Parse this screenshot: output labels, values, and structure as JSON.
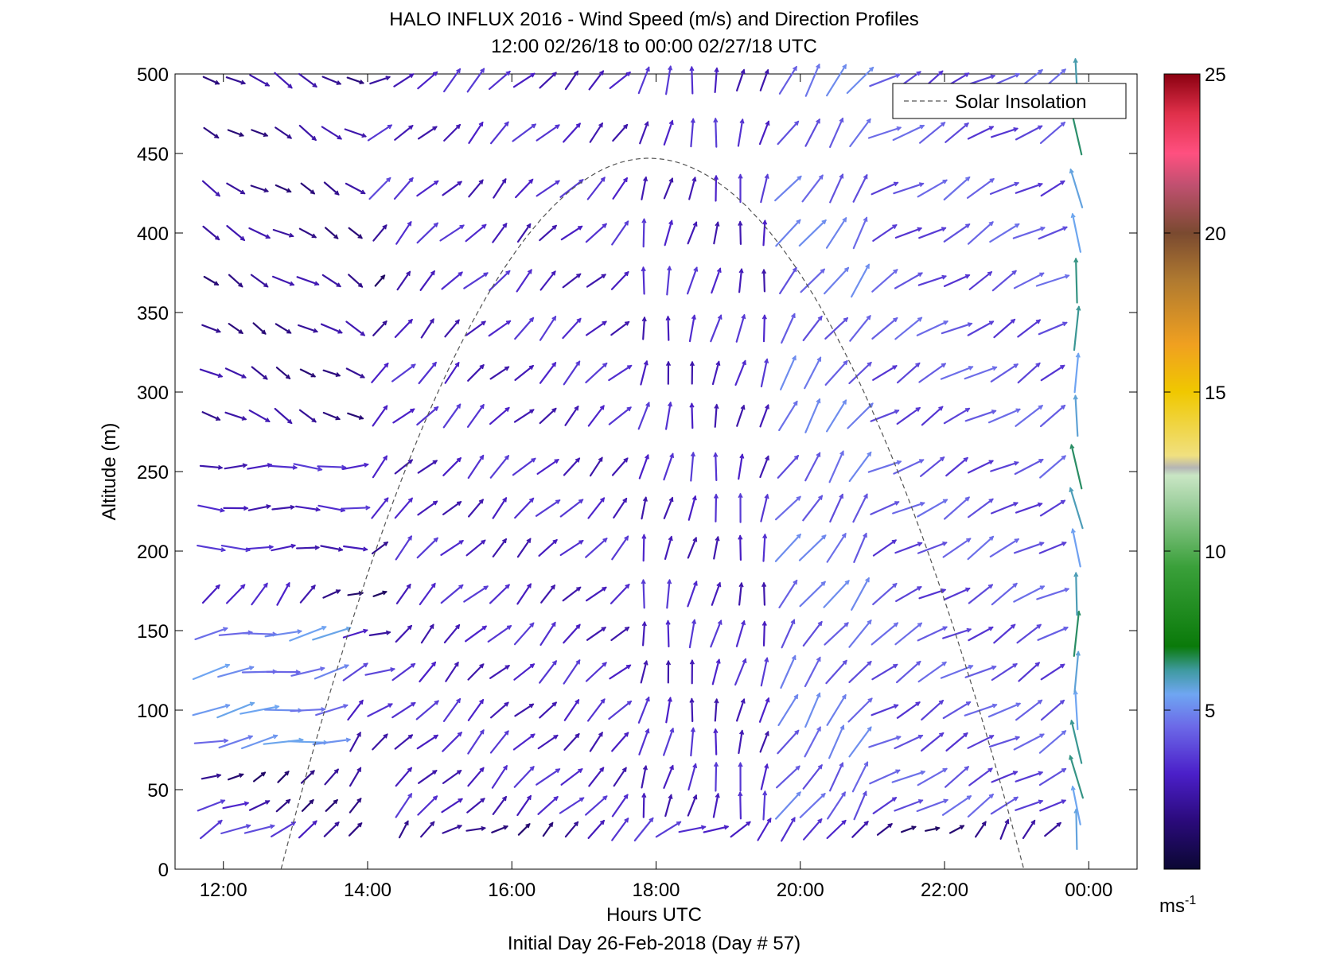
{
  "chart_data": {
    "type": "quiver",
    "title": "HALO INFLUX 2016 - Wind Speed (m/s) and Direction Profiles",
    "subtitle": "12:00 02/26/18 to 00:00 02/27/18  UTC",
    "xlabel": "Hours UTC",
    "ylabel": "Altitude (m)",
    "footer": "Initial Day 26-Feb-2018 (Day # 57)",
    "xlim": [
      11.33,
      24.67
    ],
    "ylim": [
      0,
      500
    ],
    "xticks": [
      12,
      14,
      16,
      18,
      20,
      22,
      24
    ],
    "xtick_labels": [
      "12:00",
      "14:00",
      "16:00",
      "18:00",
      "20:00",
      "22:00",
      "00:00"
    ],
    "yticks": [
      0,
      50,
      100,
      150,
      200,
      250,
      300,
      350,
      400,
      450,
      500
    ],
    "ytick_labels": [
      "0",
      "50",
      "100",
      "150",
      "200",
      "250",
      "300",
      "350",
      "400",
      "450",
      "500"
    ],
    "legend": {
      "label": "Solar Insolation",
      "position": "top-right",
      "style": "dashed"
    },
    "solar_curve": {
      "start_hour": 12.8,
      "peak_hour": 17.9,
      "end_hour": 23.1,
      "peak_altitude": 447
    },
    "colorbar": {
      "min": 0,
      "max": 25,
      "ticks": [
        5,
        10,
        15,
        20,
        25
      ],
      "tick_labels": [
        "5",
        "10",
        "15",
        "20",
        "25"
      ],
      "unit_label": "ms",
      "unit_exponent": "-1",
      "colormap": "dark-navy-purple-blue-teal-green-lightgreen-gray-yellow-orange-brown-pink-red"
    },
    "grid": false,
    "altitudes": [
      25,
      40,
      58,
      80,
      100,
      124,
      148,
      173,
      202,
      227,
      253,
      285,
      312,
      340,
      370,
      400,
      428,
      463,
      496
    ],
    "time_columns": [
      11.83,
      12.17,
      12.5,
      12.83,
      13.17,
      13.5,
      13.83,
      14.17,
      14.5,
      14.83,
      15.17,
      15.5,
      15.83,
      16.17,
      16.5,
      16.83,
      17.17,
      17.5,
      17.83,
      18.17,
      18.5,
      18.83,
      19.17,
      19.5,
      19.83,
      20.17,
      20.5,
      20.83,
      21.17,
      21.5,
      21.83,
      22.17,
      22.5,
      22.83,
      23.17,
      23.5,
      23.83
    ],
    "wind_vectors_note": "per-arrow values below",
    "wind_regimes": [
      {
        "hours": [
          11.8,
          14.1
        ],
        "altitudes": [
          200,
          260
        ],
        "direction_deg": 270,
        "speed": 3
      },
      {
        "hours": [
          11.8,
          14.1
        ],
        "altitudes": [
          280,
          500
        ],
        "direction_deg": 300,
        "speed": 2
      },
      {
        "hours": [
          11.8,
          13.8
        ],
        "altitudes": [
          60,
          150
        ],
        "direction_deg": 260,
        "speed": 5
      },
      {
        "hours": [
          14.5,
          17.5
        ],
        "altitudes": [
          40,
          500
        ],
        "direction_deg": 225,
        "speed": 3
      },
      {
        "hours": [
          17.5,
          19.5
        ],
        "altitudes": [
          40,
          500
        ],
        "direction_deg": 190,
        "speed": 3
      },
      {
        "hours": [
          19.5,
          21.0
        ],
        "altitudes": [
          40,
          500
        ],
        "direction_deg": 215,
        "speed": 4.5
      },
      {
        "hours": [
          21.0,
          23.5
        ],
        "altitudes": [
          40,
          500
        ],
        "direction_deg": 240,
        "speed": 4
      },
      {
        "hours": [
          23.6,
          23.9
        ],
        "altitudes": [
          20,
          500
        ],
        "direction_deg": 175,
        "speed": 6
      }
    ]
  }
}
